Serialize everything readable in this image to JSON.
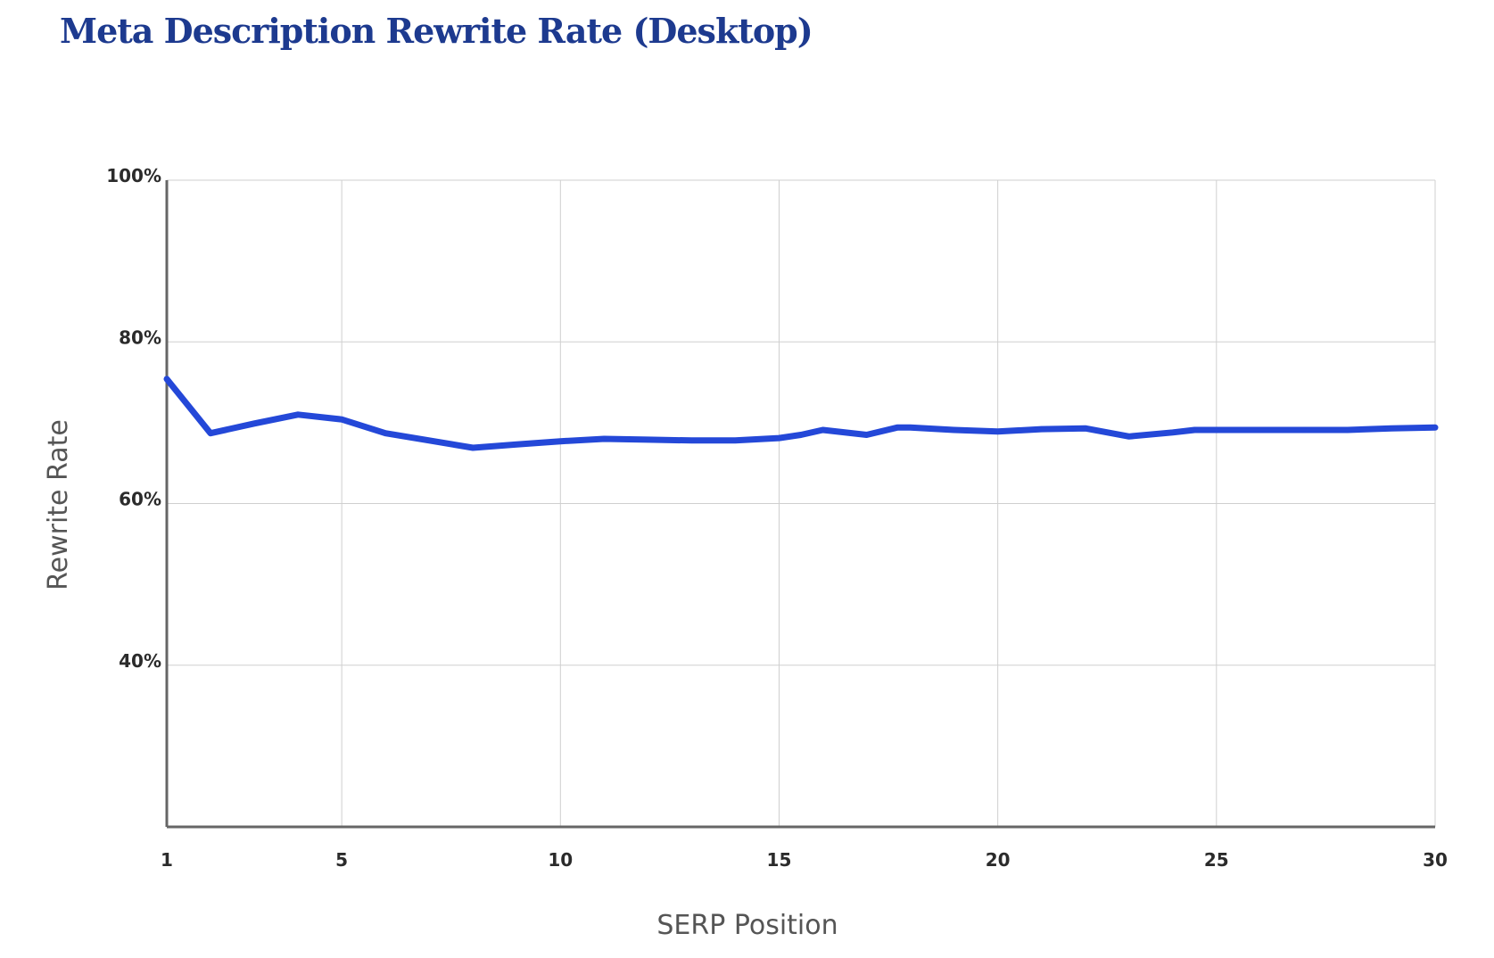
{
  "colors": {
    "title": "#1d3a8f",
    "series": "#2448d8",
    "grid": "#cfcfcf",
    "axis": "#666666"
  },
  "chart_data": {
    "type": "line",
    "title": "Meta Description Rewrite Rate (Desktop)",
    "xlabel": "SERP Position",
    "ylabel": "Rewrite Rate",
    "xlim": [
      1,
      30
    ],
    "ylim": [
      20,
      100
    ],
    "x_ticks": [
      1,
      5,
      10,
      15,
      20,
      25,
      30
    ],
    "x_tick_labels": [
      "1",
      "5",
      "10",
      "15",
      "20",
      "25",
      "30"
    ],
    "y_ticks": [
      40,
      60,
      80,
      100
    ],
    "y_tick_labels": [
      "40%",
      "60%",
      "80%",
      "100%"
    ],
    "grid": true,
    "legend": "none",
    "series": [
      {
        "x": [
          1,
          2,
          3,
          4,
          5,
          6,
          7,
          8,
          9,
          10,
          11,
          12,
          13,
          14,
          15,
          15.5,
          16,
          17,
          17.7,
          18,
          19,
          20,
          21,
          22,
          23,
          24,
          24.5,
          25,
          26,
          27,
          28,
          29,
          30
        ],
        "y": [
          75.4,
          68.7,
          69.9,
          71.0,
          70.4,
          68.7,
          67.8,
          66.9,
          67.3,
          67.7,
          68.0,
          67.9,
          67.8,
          67.8,
          68.1,
          68.5,
          69.1,
          68.5,
          69.4,
          69.4,
          69.1,
          68.9,
          69.2,
          69.3,
          68.3,
          68.8,
          69.1,
          69.1,
          69.1,
          69.1,
          69.1,
          69.3,
          69.4
        ]
      }
    ]
  }
}
